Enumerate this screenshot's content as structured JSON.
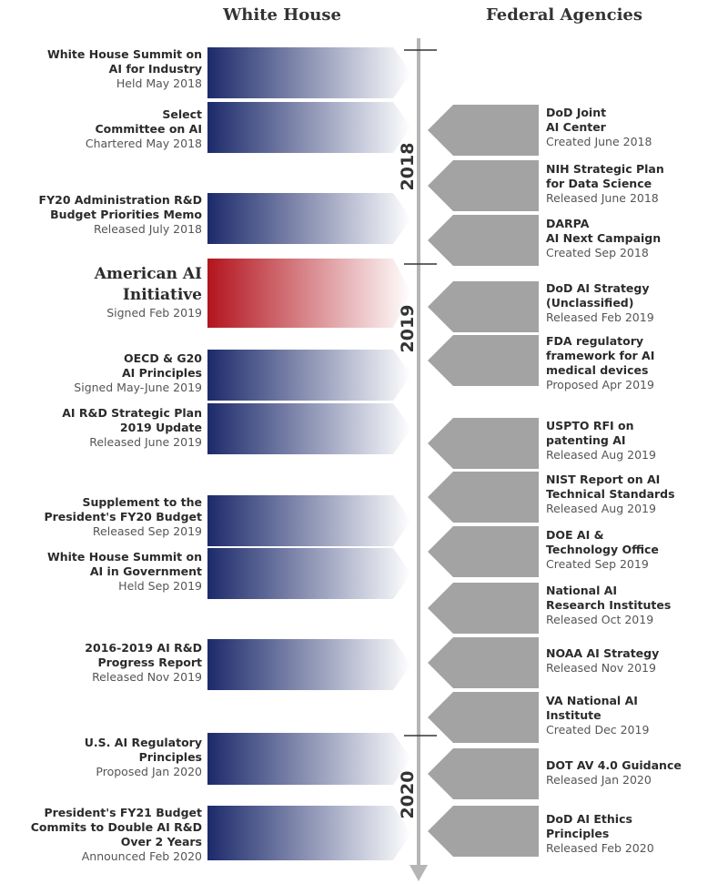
{
  "headers": {
    "white_house": "White House",
    "federal_agencies": "Federal Agencies"
  },
  "years": {
    "y2018": "2018",
    "y2019": "2019",
    "y2020": "2020"
  },
  "colors": {
    "blue": "#1c2a6b",
    "red": "#b3141d",
    "gray": "#a3a3a3",
    "axis": "#b5b5b5"
  },
  "white_house": [
    {
      "title": [
        "White House Summit on",
        "AI for Industry"
      ],
      "sub": "Held May 2018"
    },
    {
      "title": [
        "Select",
        "Committee on AI"
      ],
      "sub": "Chartered May 2018"
    },
    {
      "title": [
        "FY20 Administration R&D",
        "Budget Priorities Memo"
      ],
      "sub": "Released July 2018"
    },
    {
      "title": [
        "American AI",
        "Initiative"
      ],
      "sub": "Signed Feb 2019",
      "highlight": true
    },
    {
      "title": [
        "OECD & G20",
        "AI Principles"
      ],
      "sub": "Signed May-June 2019"
    },
    {
      "title": [
        "AI R&D Strategic Plan",
        "2019 Update"
      ],
      "sub": "Released June 2019"
    },
    {
      "title": [
        "Supplement to the",
        "President's FY20 Budget"
      ],
      "sub": "Released Sep 2019"
    },
    {
      "title": [
        "White House Summit on",
        "AI in Government"
      ],
      "sub": "Held Sep 2019"
    },
    {
      "title": [
        "2016-2019 AI R&D",
        "Progress Report"
      ],
      "sub": "Released Nov 2019"
    },
    {
      "title": [
        "U.S. AI Regulatory",
        "Principles"
      ],
      "sub": "Proposed Jan 2020"
    },
    {
      "title": [
        "President's FY21 Budget",
        "Commits to Double AI R&D",
        "Over 2 Years"
      ],
      "sub": "Announced Feb 2020"
    }
  ],
  "federal_agencies": [
    {
      "title": [
        "DoD Joint",
        "AI Center"
      ],
      "sub": "Created June 2018"
    },
    {
      "title": [
        "NIH Strategic Plan",
        "for Data Science"
      ],
      "sub": "Released June 2018"
    },
    {
      "title": [
        "DARPA",
        "AI Next Campaign"
      ],
      "sub": "Created Sep 2018"
    },
    {
      "title": [
        "DoD AI Strategy",
        "(Unclassified)"
      ],
      "sub": "Released Feb 2019"
    },
    {
      "title": [
        "FDA regulatory",
        "framework for AI",
        "medical devices"
      ],
      "sub": "Proposed Apr 2019"
    },
    {
      "title": [
        "USPTO RFI on",
        "patenting AI"
      ],
      "sub": "Released Aug 2019"
    },
    {
      "title": [
        "NIST Report on AI",
        "Technical Standards"
      ],
      "sub": "Released Aug 2019"
    },
    {
      "title": [
        "DOE AI &",
        "Technology Office"
      ],
      "sub": "Created Sep 2019"
    },
    {
      "title": [
        "National AI",
        "Research Institutes"
      ],
      "sub": "Released Oct 2019"
    },
    {
      "title": [
        "NOAA AI Strategy"
      ],
      "sub": "Released Nov 2019"
    },
    {
      "title": [
        "VA National AI",
        "Institute"
      ],
      "sub": "Created Dec 2019"
    },
    {
      "title": [
        "DOT AV 4.0 Guidance"
      ],
      "sub": "Released Jan 2020"
    },
    {
      "title": [
        "DoD AI Ethics",
        "Principles"
      ],
      "sub": "Released Feb 2020"
    }
  ]
}
